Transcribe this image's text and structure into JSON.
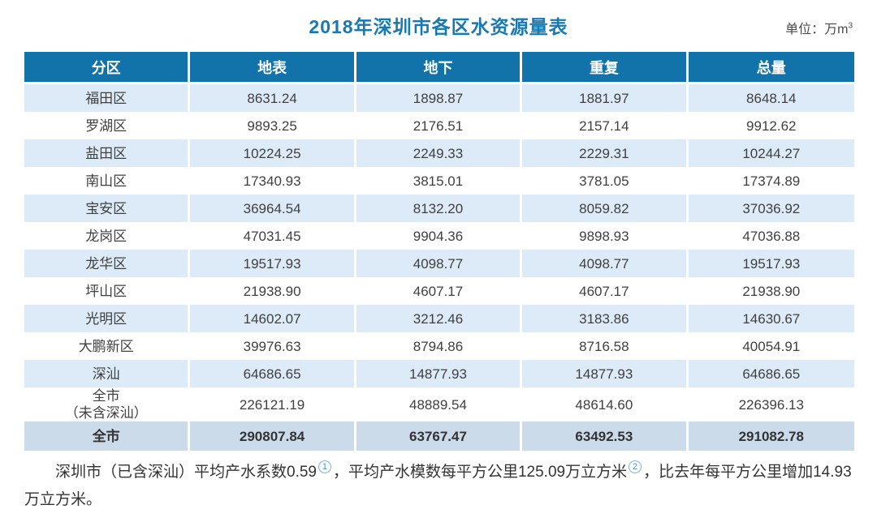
{
  "title": "2018年深圳市各区水资源量表",
  "unit": {
    "text": "单位：万m",
    "exponent": "3"
  },
  "colors": {
    "title_blue": "#1779b3",
    "header_bg": "#1173a9",
    "header_text": "#ffffff",
    "stripe_bg": "#dcebf7",
    "total_row_bg": "#ccdbea",
    "body_text": "#404040",
    "footnote_ref": "#4a94cf"
  },
  "chart_data": {
    "type": "table",
    "title": "2018年深圳市各区水资源量表",
    "unit": "万m³",
    "columns": [
      "分区",
      "地表",
      "地下",
      "重复",
      "总量"
    ],
    "rows": [
      [
        "福田区",
        "8631.24",
        "1898.87",
        "1881.97",
        "8648.14"
      ],
      [
        "罗湖区",
        "9893.25",
        "2176.51",
        "2157.14",
        "9912.62"
      ],
      [
        "盐田区",
        "10224.25",
        "2249.33",
        "2229.31",
        "10244.27"
      ],
      [
        "南山区",
        "17340.93",
        "3815.01",
        "3781.05",
        "17374.89"
      ],
      [
        "宝安区",
        "36964.54",
        "8132.20",
        "8059.82",
        "37036.92"
      ],
      [
        "龙岗区",
        "47031.45",
        "9904.36",
        "9898.93",
        "47036.88"
      ],
      [
        "龙华区",
        "19517.93",
        "4098.77",
        "4098.77",
        "19517.93"
      ],
      [
        "坪山区",
        "21938.90",
        "4607.17",
        "4607.17",
        "21938.90"
      ],
      [
        "光明区",
        "14602.07",
        "3212.46",
        "3183.86",
        "14630.67"
      ],
      [
        "大鹏新区",
        "39976.63",
        "8794.86",
        "8716.58",
        "40054.91"
      ],
      [
        "深汕",
        "64686.65",
        "14877.93",
        "14877.93",
        "64686.65"
      ],
      [
        "全市\n（未含深汕）",
        "226121.19",
        "48889.54",
        "48614.60",
        "226396.13"
      ]
    ],
    "total_row": [
      "全市",
      "290807.84",
      "63767.47",
      "63492.53",
      "291082.78"
    ]
  },
  "footnote": {
    "part1": "深圳市（已含深汕）平均产水系数0.59",
    "ref1": "1",
    "part2": "，平均产水模数每平方公里125.09万立方米",
    "ref2": "2",
    "part3": "，比去年每平方公里增加14.93万立方米。"
  }
}
